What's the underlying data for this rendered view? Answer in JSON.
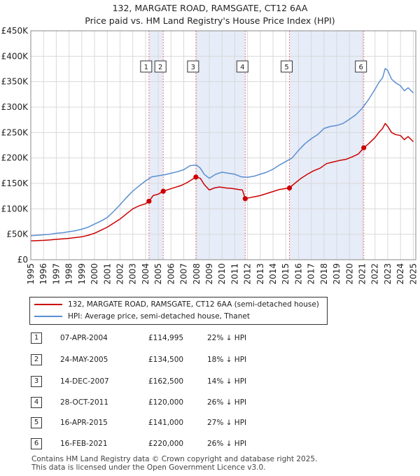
{
  "title_line1": "132, MARGATE ROAD, RAMSGATE, CT12 6AA",
  "title_line2": "Price paid vs. HM Land Registry's House Price Index (HPI)",
  "legend": {
    "property_label": "132, MARGATE ROAD, RAMSGATE, CT12 6AA (semi-detached house)",
    "hpi_label": "HPI: Average price, semi-detached house, Thanet"
  },
  "colors": {
    "property": "#cc0000",
    "hpi": "#5b8fd0",
    "shade": "#e6ecf8",
    "grid": "#d9d9d9",
    "vline": "#ee7777"
  },
  "transactions": [
    {
      "num": "1",
      "date": "07-APR-2004",
      "price": "£114,995",
      "hpi": "22% ↓ HPI"
    },
    {
      "num": "2",
      "date": "24-MAY-2005",
      "price": "£134,500",
      "hpi": "18% ↓ HPI"
    },
    {
      "num": "3",
      "date": "14-DEC-2007",
      "price": "£162,500",
      "hpi": "14% ↓ HPI"
    },
    {
      "num": "4",
      "date": "28-OCT-2011",
      "price": "£120,000",
      "hpi": "26% ↓ HPI"
    },
    {
      "num": "5",
      "date": "16-APR-2015",
      "price": "£141,000",
      "hpi": "27% ↓ HPI"
    },
    {
      "num": "6",
      "date": "16-FEB-2021",
      "price": "£220,000",
      "hpi": "26% ↓ HPI"
    }
  ],
  "footer_line1": "Contains HM Land Registry data © Crown copyright and database right 2025.",
  "footer_line2": "This data is licensed under the Open Government Licence v3.0.",
  "chart_data": {
    "type": "line",
    "xlim": [
      1995,
      2025.2
    ],
    "ylim": [
      0,
      450000
    ],
    "yticks": [
      0,
      50000,
      100000,
      150000,
      200000,
      250000,
      300000,
      350000,
      400000,
      450000
    ],
    "ytick_labels": [
      "£0",
      "£50K",
      "£100K",
      "£150K",
      "£200K",
      "£250K",
      "£300K",
      "£350K",
      "£400K",
      "£450K"
    ],
    "xticks": [
      1995,
      1996,
      1997,
      1998,
      1999,
      2000,
      2001,
      2002,
      2003,
      2004,
      2005,
      2006,
      2007,
      2008,
      2009,
      2010,
      2011,
      2012,
      2013,
      2014,
      2015,
      2016,
      2017,
      2018,
      2019,
      2020,
      2021,
      2022,
      2023,
      2024,
      2025
    ],
    "grid": true,
    "shaded_periods": [
      [
        2004.27,
        2005.39
      ],
      [
        2007.95,
        2011.82
      ],
      [
        2015.29,
        2021.12
      ]
    ],
    "markers": [
      {
        "label": "1",
        "x": 2004.27,
        "y": 114995
      },
      {
        "label": "2",
        "x": 2005.39,
        "y": 134500
      },
      {
        "label": "3",
        "x": 2007.95,
        "y": 162500
      },
      {
        "label": "4",
        "x": 2011.82,
        "y": 120000
      },
      {
        "label": "5",
        "x": 2015.29,
        "y": 141000
      },
      {
        "label": "6",
        "x": 2021.12,
        "y": 220000
      }
    ],
    "series": [
      {
        "name": "HPI: Average price, semi-detached house, Thanet",
        "color": "#5b8fd0",
        "x": [
          1995,
          1995.5,
          1996,
          1996.5,
          1997,
          1997.5,
          1998,
          1998.5,
          1999,
          1999.5,
          2000,
          2000.5,
          2001,
          2001.5,
          2002,
          2002.5,
          2003,
          2003.5,
          2004,
          2004.5,
          2005,
          2005.5,
          2006,
          2006.5,
          2007,
          2007.5,
          2008,
          2008.3,
          2008.6,
          2009,
          2009.5,
          2010,
          2010.5,
          2011,
          2011.5,
          2012,
          2012.5,
          2013,
          2013.5,
          2014,
          2014.5,
          2015,
          2015.5,
          2016,
          2016.5,
          2017,
          2017.5,
          2018,
          2018.5,
          2019,
          2019.5,
          2020,
          2020.5,
          2021,
          2021.5,
          2022,
          2022.3,
          2022.6,
          2022.8,
          2023,
          2023.3,
          2023.6,
          2024,
          2024.3,
          2024.6,
          2025
        ],
        "y": [
          47000,
          48000,
          49000,
          50000,
          52000,
          53000,
          55000,
          57000,
          60000,
          64000,
          70000,
          76000,
          83000,
          95000,
          108000,
          122000,
          135000,
          145000,
          155000,
          163000,
          165000,
          167000,
          170000,
          173000,
          177000,
          185000,
          186000,
          180000,
          168000,
          160000,
          168000,
          172000,
          170000,
          168000,
          163000,
          162000,
          164000,
          168000,
          172000,
          178000,
          186000,
          193000,
          200000,
          215000,
          228000,
          238000,
          246000,
          258000,
          262000,
          264000,
          268000,
          276000,
          285000,
          298000,
          315000,
          335000,
          348000,
          358000,
          376000,
          372000,
          355000,
          348000,
          342000,
          332000,
          338000,
          328000
        ]
      },
      {
        "name": "132, MARGATE ROAD, RAMSGATE, CT12 6AA (semi-detached house)",
        "color": "#cc0000",
        "x": [
          1995,
          1995.5,
          1996,
          1996.5,
          1997,
          1997.5,
          1998,
          1998.5,
          1999,
          1999.5,
          2000,
          2000.5,
          2001,
          2001.5,
          2002,
          2002.5,
          2003,
          2003.5,
          2004,
          2004.27,
          2004.6,
          2005,
          2005.39,
          2005.8,
          2006.3,
          2006.8,
          2007.3,
          2007.95,
          2008.3,
          2008.6,
          2009,
          2009.4,
          2009.8,
          2010.3,
          2010.8,
          2011.3,
          2011.6,
          2011.82,
          2012.2,
          2012.6,
          2013,
          2013.5,
          2014,
          2014.5,
          2015,
          2015.29,
          2015.7,
          2016.2,
          2016.7,
          2017.2,
          2017.7,
          2018.2,
          2018.7,
          2019.2,
          2019.7,
          2020.2,
          2020.7,
          2021.12,
          2021.5,
          2022,
          2022.3,
          2022.6,
          2022.8,
          2023,
          2023.3,
          2023.6,
          2024,
          2024.3,
          2024.6,
          2025
        ],
        "y": [
          37000,
          37500,
          38000,
          39000,
          40000,
          41000,
          42000,
          43500,
          45000,
          48000,
          52000,
          58000,
          64000,
          72000,
          80000,
          90000,
          100000,
          106000,
          110000,
          114995,
          126000,
          129000,
          134500,
          138000,
          142000,
          146000,
          152000,
          162500,
          160000,
          148000,
          137000,
          141000,
          143000,
          141000,
          140000,
          138000,
          137000,
          120000,
          122000,
          124000,
          126000,
          130000,
          134000,
          138000,
          140000,
          141000,
          150000,
          160000,
          168000,
          175000,
          180000,
          189000,
          192000,
          195000,
          197000,
          202000,
          208000,
          220000,
          228000,
          240000,
          250000,
          258000,
          268000,
          262000,
          250000,
          246000,
          244000,
          236000,
          242000,
          232000
        ]
      }
    ]
  }
}
